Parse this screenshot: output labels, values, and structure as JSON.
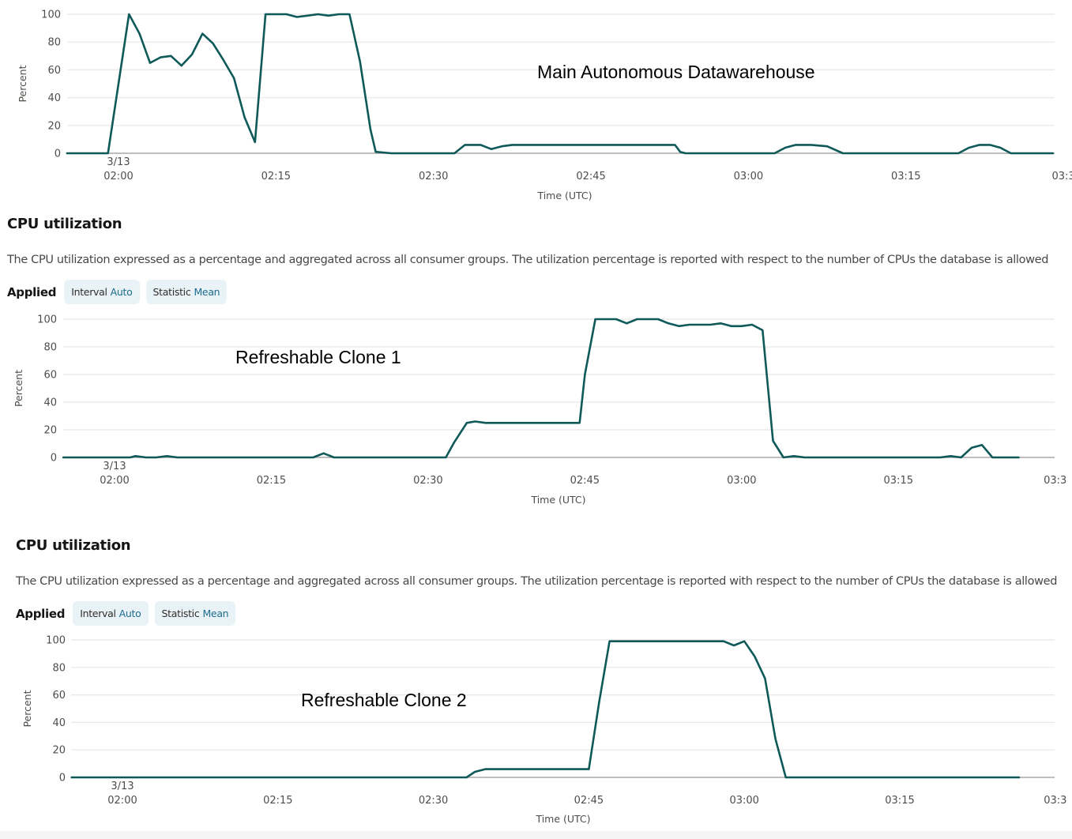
{
  "panels": [
    {
      "annotation": "Main Autonomous Datawarehouse"
    },
    {
      "section_title": "CPU utilization",
      "description": "The CPU utilization expressed as a percentage and aggregated across all consumer groups. The utilization percentage is reported with respect to the number of CPUs the database is allowed",
      "applied_label": "Applied",
      "chips": [
        {
          "label": "Interval",
          "value": "Auto"
        },
        {
          "label": "Statistic",
          "value": "Mean"
        }
      ],
      "annotation": "Refreshable Clone 1"
    },
    {
      "section_title": "CPU utilization",
      "description": "The CPU utilization expressed as a percentage and aggregated across all consumer groups. The utilization percentage is reported with respect to the number of CPUs the database is allowed",
      "applied_label": "Applied",
      "chips": [
        {
          "label": "Interval",
          "value": "Auto"
        },
        {
          "label": "Statistic",
          "value": "Mean"
        }
      ],
      "annotation": "Refreshable Clone 2"
    }
  ],
  "colors": {
    "line": "#0f5959",
    "grid": "#e8e8e8",
    "baseline": "#a9a9a9",
    "chip_bg": "#e9f3f7",
    "chip_value": "#1e6b8c"
  },
  "chart_data": [
    {
      "type": "line",
      "title": "Main Autonomous Datawarehouse",
      "xlabel": "Time (UTC)",
      "ylabel": "Percent",
      "ylim": [
        0,
        100
      ],
      "yticks": [
        0,
        20,
        40,
        60,
        80,
        100
      ],
      "xticks": [
        {
          "label": "02:00",
          "sub": "3/13",
          "minute": 0
        },
        {
          "label": "02:15",
          "minute": 15
        },
        {
          "label": "02:30",
          "minute": 30
        },
        {
          "label": "02:45",
          "minute": 45
        },
        {
          "label": "03:00",
          "minute": 60
        },
        {
          "label": "03:15",
          "minute": 75
        },
        {
          "label": "03:3",
          "minute": 90
        }
      ],
      "x_unit": "minutes after 02:00 UTC on 3/13",
      "grid": true,
      "series": [
        {
          "name": "CPU utilization",
          "x": [
            -4.9,
            -1.0,
            0.0,
            1.0,
            2.0,
            3.0,
            4.0,
            5.0,
            6.0,
            7.0,
            8.0,
            9.0,
            10.0,
            11.0,
            12.0,
            13.0,
            14.0,
            15.0,
            16.0,
            17.0,
            18.0,
            19.0,
            20.0,
            21.0,
            22.0,
            23.0,
            24.0,
            24.5,
            26.0,
            28.0,
            30.0,
            32.0,
            33.0,
            34.5,
            35.5,
            36.5,
            37.5,
            39.0,
            41.0,
            43.0,
            45.0,
            48.0,
            51.0,
            53.0,
            53.5,
            54.0,
            55.0,
            57.0,
            59.0,
            61.0,
            62.5,
            63.5,
            64.5,
            66.0,
            67.5,
            69.0,
            70.0,
            72.0,
            75.0,
            78.0,
            80.0,
            81.0,
            82.0,
            83.0,
            84.0,
            85.0,
            87.0,
            89.0
          ],
          "y": [
            0,
            0,
            50,
            100,
            86,
            65,
            69,
            70,
            63,
            71,
            86,
            79,
            67,
            54,
            26,
            8,
            100,
            100,
            100,
            98,
            99,
            100,
            99,
            100,
            100,
            66,
            17,
            1,
            0,
            0,
            0,
            0,
            6,
            6,
            3,
            5,
            6,
            6,
            6,
            6,
            6,
            6,
            6,
            6,
            1,
            0,
            0,
            0,
            0,
            0,
            0,
            4,
            6,
            6,
            5,
            0,
            0,
            0,
            0,
            0,
            0,
            4,
            6,
            6,
            4,
            0,
            0,
            0
          ]
        }
      ]
    },
    {
      "type": "line",
      "title": "Refreshable Clone 1",
      "xlabel": "Time (UTC)",
      "ylabel": "Percent",
      "ylim": [
        0,
        100
      ],
      "yticks": [
        0,
        20,
        40,
        60,
        80,
        100
      ],
      "xticks": [
        {
          "label": "02:00",
          "sub": "3/13",
          "minute": 0
        },
        {
          "label": "02:15",
          "minute": 15
        },
        {
          "label": "02:30",
          "minute": 30
        },
        {
          "label": "02:45",
          "minute": 45
        },
        {
          "label": "03:00",
          "minute": 60
        },
        {
          "label": "03:15",
          "minute": 75
        },
        {
          "label": "03:3",
          "minute": 90
        }
      ],
      "x_unit": "minutes after 02:00 UTC on 3/13",
      "grid": true,
      "series": [
        {
          "name": "CPU utilization",
          "x": [
            -4.9,
            1.5,
            2.0,
            3.0,
            4.0,
            5.0,
            6.0,
            19.0,
            20.0,
            21.0,
            31.7,
            32.5,
            33.7,
            34.5,
            35.5,
            40.0,
            44.5,
            45.0,
            46.0,
            47.0,
            48.0,
            49.0,
            50.0,
            51.0,
            52.0,
            53.0,
            54.0,
            55.0,
            56.0,
            57.0,
            58.0,
            59.0,
            60.0,
            61.0,
            62.0,
            63.0,
            64.0,
            65.0,
            66.0,
            70.0,
            79.0,
            80.0,
            81.0,
            82.0,
            83.0,
            84.0,
            86.5
          ],
          "y": [
            0,
            0,
            1,
            0,
            0,
            1,
            0,
            0,
            3,
            0,
            0,
            11,
            25,
            26,
            25,
            25,
            25,
            60,
            100,
            100,
            100,
            97,
            100,
            100,
            100,
            97,
            95,
            96,
            96,
            96,
            97,
            95,
            95,
            96,
            92,
            12,
            0,
            1,
            0,
            0,
            0,
            1,
            0,
            7,
            9,
            0,
            0
          ]
        }
      ]
    },
    {
      "type": "line",
      "title": "Refreshable Clone 2",
      "xlabel": "Time (UTC)",
      "ylabel": "Percent",
      "ylim": [
        0,
        100
      ],
      "yticks": [
        0,
        20,
        40,
        60,
        80,
        100
      ],
      "xticks": [
        {
          "label": "02:00",
          "sub": "3/13",
          "minute": 0
        },
        {
          "label": "02:15",
          "minute": 15
        },
        {
          "label": "02:30",
          "minute": 30
        },
        {
          "label": "02:45",
          "minute": 45
        },
        {
          "label": "03:00",
          "minute": 60
        },
        {
          "label": "03:15",
          "minute": 75
        },
        {
          "label": "03:3",
          "minute": 90
        }
      ],
      "x_unit": "minutes after 02:00 UTC on 3/13",
      "grid": true,
      "series": [
        {
          "name": "CPU utilization",
          "x": [
            -4.9,
            33.2,
            34.0,
            35.0,
            36.0,
            40.0,
            45.0,
            46.0,
            47.0,
            50.0,
            55.0,
            58.0,
            59.0,
            60.0,
            61.0,
            62.0,
            63.0,
            64.0,
            78.0,
            86.5
          ],
          "y": [
            0,
            0,
            4,
            6,
            6,
            6,
            6,
            55,
            99,
            99,
            99,
            99,
            96,
            99,
            88,
            72,
            28,
            0,
            0,
            0
          ]
        }
      ]
    }
  ]
}
